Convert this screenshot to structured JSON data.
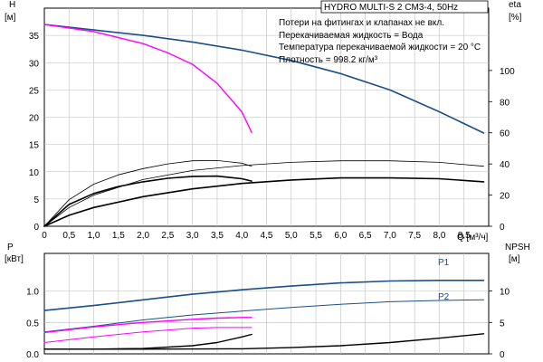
{
  "header": {
    "model": "HYDRO MULTI-S 2 CM3-4, 50Hz",
    "notes": [
      "Потери на фитингах и клапанах не вкл.",
      "Перекачиваемая жидкость = Вода",
      "Температура перекачиваемой жидкости = 20 °C",
      "Плотность = 998.2 кг/м³"
    ]
  },
  "colors": {
    "blue": "#1a4f8a",
    "magenta": "#ff00ff",
    "black": "#000000",
    "grid": "#bdbdbd"
  },
  "chart_data": [
    {
      "type": "line",
      "id": "top",
      "axes": {
        "x": {
          "label": "Q [м³/ч]",
          "range": [
            0,
            9.0
          ],
          "ticks": [
            "0",
            "0,5",
            "1,0",
            "1,5",
            "2,0",
            "2,5",
            "3,0",
            "3,5",
            "4,0",
            "4,5",
            "5,0",
            "5,5",
            "6,0",
            "6,5",
            "7,0",
            "7,5",
            "8,0",
            "8,5"
          ]
        },
        "y_left": {
          "label_top": "H",
          "label_unit": "[м]",
          "range": [
            0,
            40
          ],
          "ticks": [
            "0",
            "5",
            "10",
            "15",
            "20",
            "25",
            "30",
            "35"
          ]
        },
        "y_right": {
          "label_top": "eta",
          "label_unit": "[%]",
          "range": [
            0,
            140
          ],
          "ticks": [
            "0",
            "20",
            "40",
            "60",
            "80",
            "100"
          ]
        }
      },
      "grid": true,
      "series": [
        {
          "color": "blue",
          "width": 1.6,
          "axis": "left",
          "points": [
            [
              0,
              37
            ],
            [
              1,
              36
            ],
            [
              2,
              35
            ],
            [
              3,
              33.8
            ],
            [
              4,
              32.3
            ],
            [
              5,
              30.4
            ],
            [
              6,
              28
            ],
            [
              7,
              25
            ],
            [
              8,
              21
            ],
            [
              8.9,
              17.1
            ]
          ]
        },
        {
          "color": "magenta",
          "width": 1.4,
          "axis": "left",
          "points": [
            [
              0,
              37
            ],
            [
              1,
              35.7
            ],
            [
              2,
              33.5
            ],
            [
              2.5,
              31.8
            ],
            [
              3,
              29.7
            ],
            [
              3.5,
              26.2
            ],
            [
              4,
              21
            ],
            [
              4.2,
              17.2
            ]
          ]
        },
        {
          "color": "black",
          "width": 0.8,
          "axis": "right",
          "points": [
            [
              0,
              0
            ],
            [
              0.5,
              17
            ],
            [
              1,
              27
            ],
            [
              1.5,
              33
            ],
            [
              2,
              37
            ],
            [
              2.5,
              40
            ],
            [
              3,
              42
            ],
            [
              3.5,
              42.2
            ],
            [
              4,
              40.5
            ],
            [
              4.2,
              38.5
            ]
          ]
        },
        {
          "color": "black",
          "width": 0.8,
          "axis": "right",
          "points": [
            [
              0,
              0
            ],
            [
              0.5,
              12
            ],
            [
              1,
              20
            ],
            [
              2,
              30
            ],
            [
              3,
              35.8
            ],
            [
              4,
              39
            ],
            [
              5,
              41
            ],
            [
              6,
              42
            ],
            [
              7,
              42
            ],
            [
              8,
              41
            ],
            [
              8.9,
              38.5
            ]
          ]
        },
        {
          "color": "black",
          "width": 1.6,
          "axis": "right",
          "points": [
            [
              0,
              0
            ],
            [
              0.5,
              14
            ],
            [
              1,
              21
            ],
            [
              1.5,
              25.5
            ],
            [
              2,
              28.5
            ],
            [
              2.5,
              30.8
            ],
            [
              3,
              32
            ],
            [
              3.5,
              32.2
            ],
            [
              4,
              30.5
            ],
            [
              4.2,
              29
            ]
          ]
        },
        {
          "color": "black",
          "width": 1.6,
          "axis": "right",
          "points": [
            [
              0,
              0
            ],
            [
              0.5,
              7
            ],
            [
              1,
              12
            ],
            [
              2,
              19
            ],
            [
              3,
              24
            ],
            [
              4,
              27.5
            ],
            [
              5,
              29.7
            ],
            [
              6,
              31
            ],
            [
              7,
              31
            ],
            [
              8,
              30.5
            ],
            [
              8.9,
              28.5
            ]
          ]
        }
      ]
    },
    {
      "type": "line",
      "id": "bottom",
      "axes": {
        "x": {
          "range": [
            0,
            9.0
          ]
        },
        "y_left": {
          "label_top": "P",
          "label_unit": "[кВт]",
          "range": [
            0,
            1.6
          ],
          "ticks": [
            "0.0",
            "0.5",
            "1.0"
          ]
        },
        "y_right": {
          "label_top": "NPSH",
          "label_unit": "[м]",
          "range": [
            0,
            16
          ],
          "ticks": [
            "0",
            "5",
            "10"
          ]
        }
      },
      "grid": true,
      "series": [
        {
          "name": "P1",
          "color": "blue",
          "width": 1.6,
          "axis": "left",
          "points": [
            [
              0,
              0.69
            ],
            [
              1,
              0.77
            ],
            [
              2,
              0.86
            ],
            [
              3,
              0.95
            ],
            [
              4,
              1.02
            ],
            [
              5,
              1.08
            ],
            [
              6,
              1.13
            ],
            [
              7,
              1.16
            ],
            [
              8,
              1.17
            ],
            [
              8.9,
              1.17
            ]
          ]
        },
        {
          "name": "P2",
          "color": "blue",
          "width": 1.0,
          "axis": "left",
          "points": [
            [
              0,
              0.35
            ],
            [
              1,
              0.44
            ],
            [
              2,
              0.54
            ],
            [
              3,
              0.62
            ],
            [
              4,
              0.68
            ],
            [
              5,
              0.74
            ],
            [
              6,
              0.79
            ],
            [
              7,
              0.83
            ],
            [
              8,
              0.85
            ],
            [
              8.9,
              0.86
            ]
          ]
        },
        {
          "color": "magenta",
          "width": 1.4,
          "axis": "left",
          "points": [
            [
              0,
              0.34
            ],
            [
              1,
              0.43
            ],
            [
              2,
              0.5
            ],
            [
              3,
              0.55
            ],
            [
              3.5,
              0.57
            ],
            [
              4,
              0.58
            ],
            [
              4.2,
              0.58
            ]
          ]
        },
        {
          "color": "magenta",
          "width": 1.0,
          "axis": "left",
          "points": [
            [
              0,
              0.18
            ],
            [
              1,
              0.27
            ],
            [
              2,
              0.35
            ],
            [
              3,
              0.41
            ],
            [
              3.5,
              0.42
            ],
            [
              4,
              0.42
            ],
            [
              4.2,
              0.42
            ]
          ]
        },
        {
          "color": "black",
          "width": 1.4,
          "axis": "right",
          "points": [
            [
              0,
              0.75
            ],
            [
              1,
              0.75
            ],
            [
              2,
              0.85
            ],
            [
              3,
              1.3
            ],
            [
              3.5,
              1.8
            ],
            [
              4,
              2.7
            ],
            [
              4.2,
              3.1
            ]
          ]
        },
        {
          "color": "black",
          "width": 1.4,
          "axis": "right",
          "points": [
            [
              0,
              0.75
            ],
            [
              2,
              0.75
            ],
            [
              4,
              0.8
            ],
            [
              5,
              1.0
            ],
            [
              6,
              1.3
            ],
            [
              7,
              1.8
            ],
            [
              8,
              2.5
            ],
            [
              8.9,
              3.2
            ]
          ]
        }
      ],
      "curve_labels": [
        "P1",
        "P2"
      ]
    }
  ]
}
